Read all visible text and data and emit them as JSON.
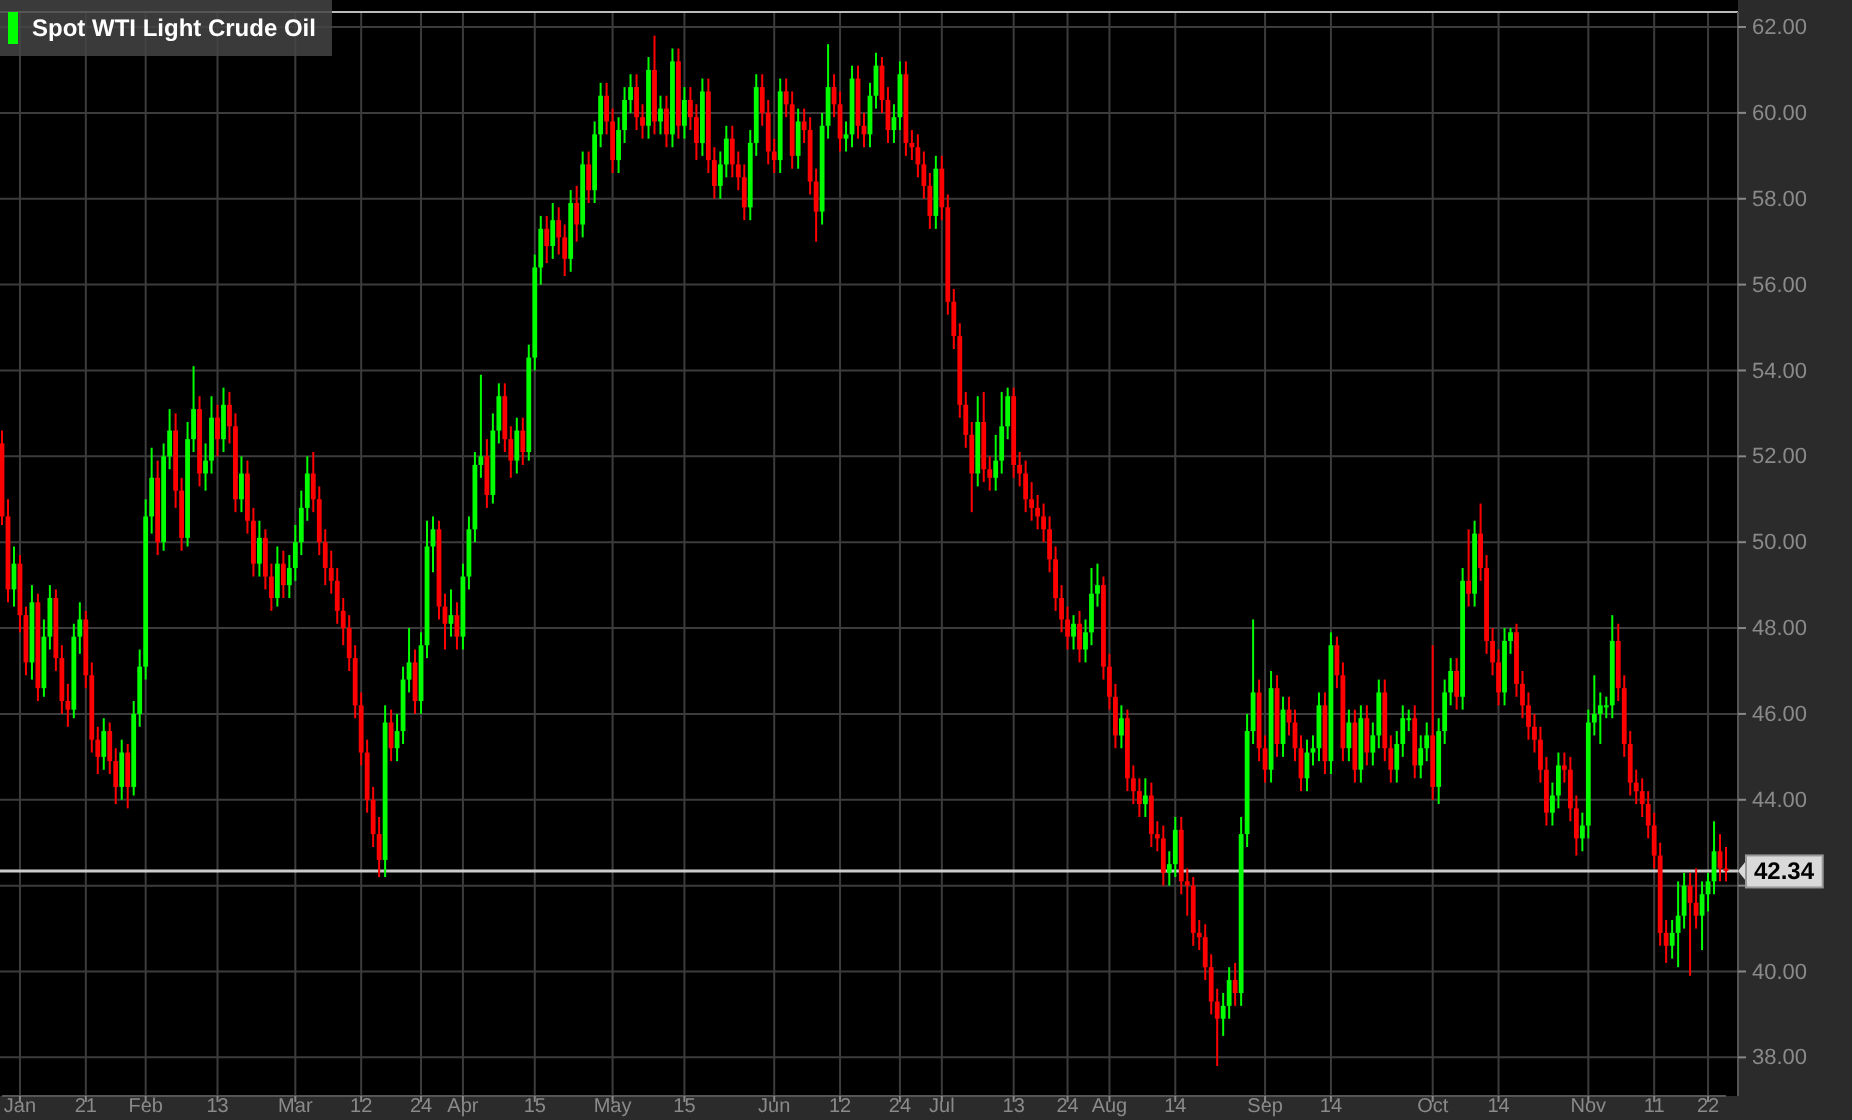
{
  "chart_data": {
    "type": "candlestick",
    "legend": "top left",
    "grid": true,
    "ylim": [
      37.1,
      62.35
    ],
    "yticks": [
      {
        "value": 38,
        "label": "38.00"
      },
      {
        "value": 40,
        "label": "40.00"
      },
      {
        "value": 42,
        "label": null
      },
      {
        "value": 44,
        "label": "44.00"
      },
      {
        "value": 46,
        "label": "46.00"
      },
      {
        "value": 48,
        "label": "48.00"
      },
      {
        "value": 50,
        "label": "50.00"
      },
      {
        "value": 52,
        "label": "52.00"
      },
      {
        "value": 54,
        "label": "54.00"
      },
      {
        "value": 56,
        "label": "56.00"
      },
      {
        "value": 58,
        "label": "58.00"
      },
      {
        "value": 60,
        "label": "60.00"
      },
      {
        "value": 62,
        "label": "62.00"
      }
    ],
    "ref_lines": [
      {
        "axis": "y",
        "value": 42.34,
        "label": "42.34",
        "color": "#cccccc"
      }
    ],
    "categories": [
      null,
      null,
      null,
      "Jan",
      null,
      null,
      null,
      null,
      null,
      null,
      null,
      null,
      null,
      null,
      "21",
      null,
      null,
      null,
      null,
      null,
      null,
      null,
      null,
      null,
      "Feb",
      null,
      null,
      null,
      null,
      null,
      null,
      null,
      null,
      null,
      null,
      null,
      "13",
      null,
      null,
      null,
      null,
      null,
      null,
      null,
      null,
      null,
      null,
      null,
      null,
      "Mar",
      null,
      null,
      null,
      null,
      null,
      null,
      null,
      null,
      null,
      null,
      "12",
      null,
      null,
      null,
      null,
      null,
      null,
      null,
      null,
      null,
      "24",
      null,
      null,
      null,
      null,
      null,
      null,
      "Apr",
      null,
      null,
      null,
      null,
      null,
      null,
      null,
      null,
      null,
      null,
      null,
      "15",
      null,
      null,
      null,
      null,
      null,
      null,
      null,
      null,
      null,
      null,
      null,
      null,
      "May",
      null,
      null,
      null,
      null,
      null,
      null,
      null,
      null,
      null,
      null,
      null,
      "15",
      null,
      null,
      null,
      null,
      null,
      null,
      null,
      null,
      null,
      null,
      null,
      null,
      null,
      null,
      "Jun",
      null,
      null,
      null,
      null,
      null,
      null,
      null,
      null,
      null,
      null,
      "12",
      null,
      null,
      null,
      null,
      null,
      null,
      null,
      null,
      null,
      "24",
      null,
      null,
      null,
      null,
      null,
      null,
      "Jul",
      null,
      null,
      null,
      null,
      null,
      null,
      null,
      null,
      null,
      null,
      null,
      "13",
      null,
      null,
      null,
      null,
      null,
      null,
      null,
      null,
      "24",
      null,
      null,
      null,
      null,
      null,
      null,
      "Aug",
      null,
      null,
      null,
      null,
      null,
      null,
      null,
      null,
      null,
      null,
      "14",
      null,
      null,
      null,
      null,
      null,
      null,
      null,
      null,
      null,
      null,
      null,
      null,
      null,
      null,
      "Sep",
      null,
      null,
      null,
      null,
      null,
      null,
      null,
      null,
      null,
      null,
      "14",
      null,
      null,
      null,
      null,
      null,
      null,
      null,
      null,
      null,
      null,
      null,
      null,
      null,
      null,
      null,
      null,
      "Oct",
      null,
      null,
      null,
      null,
      null,
      null,
      null,
      null,
      null,
      null,
      "14",
      null,
      null,
      null,
      null,
      null,
      null,
      null,
      null,
      null,
      null,
      null,
      null,
      null,
      null,
      "Nov",
      null,
      null,
      null,
      null,
      null,
      null,
      null,
      null,
      null,
      null,
      "11",
      null,
      null,
      null,
      null,
      null,
      null,
      null,
      null,
      "22",
      null,
      null,
      null
    ],
    "series": [
      {
        "name": "Spot WTI Light Crude Oil",
        "color": "#00ff00",
        "colors": [
          "#ff0000",
          "#ff0000",
          "#00ff00",
          "#ff0000",
          "#ff0000",
          "#00ff00",
          "#ff0000",
          "#00ff00",
          "#00ff00",
          "#ff0000",
          "#ff0000",
          "#ff0000",
          "#00ff00",
          "#00ff00",
          "#ff0000",
          "#ff0000",
          "#ff0000",
          "#00ff00",
          "#ff0000",
          "#ff0000",
          "#00ff00",
          "#ff0000",
          "#00ff00",
          "#00ff00",
          "#00ff00",
          "#00ff00",
          "#ff0000",
          "#00ff00",
          "#00ff00",
          "#ff0000",
          "#ff0000",
          "#00ff00",
          "#00ff00",
          "#ff0000",
          "#00ff00",
          "#00ff00",
          "#ff0000",
          "#00ff00",
          "#ff0000",
          "#ff0000",
          "#00ff00",
          "#ff0000",
          "#ff0000",
          "#00ff00",
          "#ff0000",
          "#ff0000",
          "#00ff00",
          "#ff0000",
          "#00ff00",
          "#00ff00",
          "#00ff00",
          "#00ff00",
          "#ff0000",
          "#ff0000",
          "#ff0000",
          "#ff0000",
          "#ff0000",
          "#ff0000",
          "#ff0000",
          "#ff0000",
          "#ff0000",
          "#ff0000",
          "#ff0000",
          "#ff0000",
          "#00ff00",
          "#ff0000",
          "#00ff00",
          "#00ff00",
          "#00ff00",
          "#ff0000",
          "#00ff00",
          "#00ff00",
          "#00ff00",
          "#ff0000",
          "#ff0000",
          "#00ff00",
          "#ff0000",
          "#00ff00",
          "#00ff00",
          "#00ff00",
          "#00ff00",
          "#ff0000",
          "#00ff00",
          "#00ff00",
          "#ff0000",
          "#ff0000",
          "#00ff00",
          "#ff0000",
          "#00ff00",
          "#00ff00",
          "#00ff00",
          "#ff0000",
          "#00ff00",
          "#ff0000",
          "#ff0000",
          "#00ff00",
          "#ff0000",
          "#00ff00",
          "#ff0000",
          "#00ff00",
          "#00ff00",
          "#ff0000",
          "#ff0000",
          "#00ff00",
          "#00ff00",
          "#00ff00",
          "#ff0000",
          "#ff0000",
          "#00ff00",
          "#ff0000",
          "#00ff00",
          "#ff0000",
          "#00ff00",
          "#ff0000",
          "#00ff00",
          "#ff0000",
          "#ff0000",
          "#00ff00",
          "#ff0000",
          "#ff0000",
          "#00ff00",
          "#00ff00",
          "#ff0000",
          "#ff0000",
          "#ff0000",
          "#00ff00",
          "#00ff00",
          "#ff0000",
          "#ff0000",
          "#ff0000",
          "#00ff00",
          "#ff0000",
          "#ff0000",
          "#00ff00",
          "#ff0000",
          "#ff0000",
          "#ff0000",
          "#00ff00",
          "#00ff00",
          "#ff0000",
          "#ff0000",
          "#00ff00",
          "#00ff00",
          "#ff0000",
          "#ff0000",
          "#00ff00",
          "#00ff00",
          "#ff0000",
          "#ff0000",
          "#00ff00",
          "#00ff00",
          "#ff0000",
          "#ff0000",
          "#ff0000",
          "#ff0000",
          "#ff0000",
          "#00ff00",
          "#ff0000",
          "#ff0000",
          "#ff0000",
          "#ff0000",
          "#ff0000",
          "#ff0000",
          "#00ff00",
          "#ff0000",
          "#ff0000",
          "#00ff00",
          "#00ff00",
          "#00ff00",
          "#ff0000",
          "#ff0000",
          "#ff0000",
          "#ff0000",
          "#ff0000",
          "#ff0000",
          "#ff0000",
          "#ff0000",
          "#ff0000",
          "#ff0000",
          "#00ff00",
          "#ff0000",
          "#00ff00",
          "#00ff00",
          "#00ff00",
          "#ff0000",
          "#ff0000",
          "#ff0000",
          "#00ff00",
          "#ff0000",
          "#ff0000",
          "#ff0000",
          "#00ff00",
          "#ff0000",
          "#ff0000",
          "#ff0000",
          "#00ff00",
          "#00ff00",
          "#ff0000",
          "#ff0000",
          "#ff0000",
          "#ff0000",
          "#ff0000",
          "#ff0000",
          "#ff0000",
          "#00ff00",
          "#00ff00",
          "#ff0000",
          "#00ff00",
          "#00ff00",
          "#00ff00",
          "#ff0000",
          "#ff0000",
          "#00ff00",
          "#ff0000",
          "#00ff00",
          "#ff0000",
          "#ff0000",
          "#ff0000",
          "#00ff00",
          "#00ff00",
          "#00ff00",
          "#ff0000",
          "#00ff00",
          "#ff0000",
          "#ff0000",
          "#00ff00",
          "#ff0000",
          "#00ff00",
          "#ff0000",
          "#00ff00",
          "#00ff00",
          "#ff0000",
          "#ff0000",
          "#00ff00",
          "#00ff00",
          "#00ff00",
          "#ff0000",
          "#00ff00",
          "#00ff00",
          "#ff0000",
          "#00ff00",
          "#00ff00",
          "#00ff00",
          "#ff0000",
          "#00ff00",
          "#ff0000",
          "#00ff00",
          "#ff0000",
          "#ff0000",
          "#ff0000",
          "#ff0000",
          "#00ff00",
          "#00ff00",
          "#ff0000",
          "#ff0000",
          "#ff0000",
          "#ff0000",
          "#ff0000",
          "#ff0000",
          "#00ff00",
          "#00ff00",
          "#ff0000",
          "#ff0000",
          "#ff0000",
          "#00ff00",
          "#00ff00",
          "#00ff00",
          "#00ff00",
          "#00ff00",
          "#00ff00",
          "#ff0000",
          "#ff0000",
          "#ff0000",
          "#ff0000",
          "#ff0000",
          "#ff0000",
          "#ff0000",
          "#ff0000",
          "#ff0000",
          "#00ff00",
          "#00ff00",
          "#00ff00",
          "#ff0000",
          "#ff0000",
          "#00ff00",
          "#00ff00",
          "#00ff00",
          "#ff0000",
          "#ff0000"
        ],
        "ohlc": [
          [
            52.3,
            52.6,
            50.4,
            50.6
          ],
          [
            50.6,
            51.0,
            48.6,
            48.9
          ],
          [
            48.9,
            49.9,
            48.5,
            49.5
          ],
          [
            49.5,
            49.7,
            47.9,
            48.3
          ],
          [
            48.3,
            48.5,
            46.9,
            47.2
          ],
          [
            47.2,
            49.0,
            46.8,
            48.6
          ],
          [
            48.6,
            48.8,
            46.3,
            46.6
          ],
          [
            46.6,
            48.2,
            46.4,
            47.8
          ],
          [
            47.8,
            49.0,
            47.5,
            48.7
          ],
          [
            48.7,
            48.9,
            47.0,
            47.3
          ],
          [
            47.3,
            47.6,
            46.0,
            46.3
          ],
          [
            46.3,
            46.7,
            45.7,
            46.1
          ],
          [
            46.1,
            48.1,
            45.9,
            47.8
          ],
          [
            47.8,
            48.6,
            47.4,
            48.2
          ],
          [
            48.2,
            48.4,
            46.6,
            46.9
          ],
          [
            46.9,
            47.2,
            45.1,
            45.4
          ],
          [
            45.4,
            45.7,
            44.6,
            45.0
          ],
          [
            45.0,
            45.9,
            44.7,
            45.6
          ],
          [
            45.6,
            45.8,
            44.6,
            44.9
          ],
          [
            44.9,
            45.2,
            43.9,
            44.3
          ],
          [
            44.3,
            45.4,
            44.0,
            45.1
          ],
          [
            45.1,
            45.3,
            43.8,
            44.3
          ],
          [
            44.3,
            46.3,
            44.1,
            46.0
          ],
          [
            46.0,
            47.5,
            45.7,
            47.1
          ],
          [
            47.1,
            51.0,
            46.8,
            50.6
          ],
          [
            50.6,
            52.2,
            50.2,
            51.5
          ],
          [
            51.5,
            51.9,
            49.7,
            50.0
          ],
          [
            50.0,
            52.3,
            49.8,
            52.0
          ],
          [
            52.0,
            53.1,
            51.7,
            52.6
          ],
          [
            52.6,
            53.0,
            50.8,
            51.2
          ],
          [
            51.2,
            51.5,
            49.8,
            50.1
          ],
          [
            50.1,
            52.8,
            49.9,
            52.4
          ],
          [
            52.4,
            54.1,
            52.1,
            53.1
          ],
          [
            53.1,
            53.4,
            51.3,
            51.6
          ],
          [
            51.6,
            52.3,
            51.2,
            51.9
          ],
          [
            51.9,
            53.4,
            51.6,
            52.9
          ],
          [
            52.9,
            53.2,
            52.0,
            52.4
          ],
          [
            52.4,
            53.6,
            52.1,
            53.2
          ],
          [
            53.2,
            53.5,
            52.3,
            52.7
          ],
          [
            52.7,
            53.0,
            50.7,
            51.0
          ],
          [
            51.0,
            52.0,
            50.7,
            51.6
          ],
          [
            51.6,
            51.9,
            50.2,
            50.5
          ],
          [
            50.5,
            50.8,
            49.2,
            49.5
          ],
          [
            49.5,
            50.5,
            49.2,
            50.1
          ],
          [
            50.1,
            50.3,
            48.9,
            49.2
          ],
          [
            49.2,
            49.5,
            48.4,
            48.7
          ],
          [
            48.7,
            49.9,
            48.5,
            49.5
          ],
          [
            49.5,
            49.8,
            48.7,
            49.0
          ],
          [
            49.0,
            49.7,
            48.7,
            49.4
          ],
          [
            49.4,
            50.4,
            49.1,
            50.0
          ],
          [
            50.0,
            51.2,
            49.7,
            50.8
          ],
          [
            50.8,
            52.0,
            50.5,
            51.6
          ],
          [
            51.6,
            52.1,
            50.7,
            51.0
          ],
          [
            51.0,
            51.3,
            49.7,
            50.0
          ],
          [
            50.0,
            50.3,
            49.0,
            49.4
          ],
          [
            49.4,
            49.8,
            48.8,
            49.1
          ],
          [
            49.1,
            49.4,
            48.1,
            48.4
          ],
          [
            48.4,
            48.7,
            47.6,
            48.0
          ],
          [
            48.0,
            48.3,
            47.0,
            47.3
          ],
          [
            47.3,
            47.6,
            45.9,
            46.2
          ],
          [
            46.2,
            46.5,
            44.8,
            45.1
          ],
          [
            45.1,
            45.4,
            43.7,
            44.0
          ],
          [
            44.0,
            44.3,
            42.9,
            43.2
          ],
          [
            43.2,
            43.6,
            42.2,
            42.6
          ],
          [
            42.6,
            46.2,
            42.2,
            45.8
          ],
          [
            45.8,
            46.1,
            44.9,
            45.2
          ],
          [
            45.2,
            46.0,
            44.9,
            45.6
          ],
          [
            45.6,
            47.1,
            45.3,
            46.8
          ],
          [
            46.8,
            48.0,
            46.5,
            47.2
          ],
          [
            47.2,
            47.5,
            46.0,
            46.3
          ],
          [
            46.3,
            47.9,
            46.0,
            47.6
          ],
          [
            47.6,
            50.5,
            47.3,
            49.9
          ],
          [
            49.9,
            50.6,
            49.3,
            50.3
          ],
          [
            50.3,
            50.5,
            48.2,
            48.5
          ],
          [
            48.5,
            48.8,
            47.5,
            48.1
          ],
          [
            48.1,
            48.9,
            47.8,
            48.3
          ],
          [
            48.3,
            48.6,
            47.5,
            47.8
          ],
          [
            47.8,
            49.5,
            47.5,
            49.2
          ],
          [
            49.2,
            50.6,
            48.9,
            50.3
          ],
          [
            50.3,
            52.1,
            50.0,
            51.8
          ],
          [
            51.8,
            53.9,
            51.5,
            52.0
          ],
          [
            52.0,
            52.4,
            50.8,
            51.1
          ],
          [
            51.1,
            53.0,
            50.9,
            52.6
          ],
          [
            52.6,
            53.7,
            52.3,
            53.4
          ],
          [
            53.4,
            53.7,
            52.1,
            52.4
          ],
          [
            52.4,
            52.7,
            51.5,
            51.9
          ],
          [
            51.9,
            52.9,
            51.6,
            52.6
          ],
          [
            52.6,
            52.9,
            51.8,
            52.1
          ],
          [
            52.1,
            54.6,
            51.9,
            54.3
          ],
          [
            54.3,
            56.7,
            54.0,
            56.4
          ],
          [
            56.4,
            57.6,
            56.0,
            57.3
          ],
          [
            57.3,
            57.6,
            56.5,
            56.9
          ],
          [
            56.9,
            57.9,
            56.6,
            57.5
          ],
          [
            57.5,
            57.8,
            56.7,
            57.1
          ],
          [
            57.1,
            57.4,
            56.2,
            56.6
          ],
          [
            56.6,
            58.2,
            56.3,
            57.9
          ],
          [
            57.9,
            58.3,
            57.0,
            57.4
          ],
          [
            57.4,
            59.1,
            57.1,
            58.8
          ],
          [
            58.8,
            59.1,
            57.9,
            58.2
          ],
          [
            58.2,
            59.8,
            57.9,
            59.5
          ],
          [
            59.5,
            60.7,
            59.2,
            60.4
          ],
          [
            60.4,
            60.7,
            59.5,
            59.8
          ],
          [
            59.8,
            60.1,
            58.6,
            58.9
          ],
          [
            58.9,
            59.9,
            58.6,
            59.6
          ],
          [
            59.6,
            60.6,
            59.3,
            60.3
          ],
          [
            60.3,
            60.9,
            60.0,
            60.6
          ],
          [
            60.6,
            60.9,
            59.6,
            59.9
          ],
          [
            59.9,
            60.2,
            59.4,
            59.7
          ],
          [
            59.7,
            61.3,
            59.4,
            61.0
          ],
          [
            61.0,
            61.8,
            59.5,
            59.8
          ],
          [
            59.8,
            60.4,
            59.5,
            60.1
          ],
          [
            60.1,
            60.4,
            59.2,
            59.5
          ],
          [
            59.5,
            61.5,
            59.2,
            61.2
          ],
          [
            61.2,
            61.5,
            59.4,
            59.7
          ],
          [
            59.7,
            60.6,
            59.4,
            60.3
          ],
          [
            60.3,
            60.6,
            59.6,
            59.9
          ],
          [
            59.9,
            60.2,
            58.9,
            59.3
          ],
          [
            59.3,
            60.8,
            59.0,
            60.5
          ],
          [
            60.5,
            60.8,
            58.6,
            58.9
          ],
          [
            58.9,
            59.2,
            58.0,
            58.3
          ],
          [
            58.3,
            59.1,
            58.0,
            58.8
          ],
          [
            58.8,
            59.7,
            58.5,
            59.4
          ],
          [
            59.4,
            59.7,
            58.5,
            58.8
          ],
          [
            58.8,
            59.1,
            58.2,
            58.5
          ],
          [
            58.5,
            58.8,
            57.5,
            57.8
          ],
          [
            57.8,
            59.6,
            57.5,
            59.3
          ],
          [
            59.3,
            60.9,
            59.0,
            60.6
          ],
          [
            60.6,
            60.9,
            59.7,
            60.0
          ],
          [
            60.0,
            60.3,
            58.8,
            59.1
          ],
          [
            59.1,
            59.4,
            58.6,
            58.9
          ],
          [
            58.9,
            60.8,
            58.6,
            60.5
          ],
          [
            60.5,
            60.8,
            59.9,
            60.2
          ],
          [
            60.2,
            60.5,
            58.7,
            59.0
          ],
          [
            59.0,
            60.1,
            58.7,
            59.8
          ],
          [
            59.8,
            60.1,
            59.3,
            59.6
          ],
          [
            59.6,
            59.9,
            58.1,
            58.4
          ],
          [
            58.4,
            58.7,
            57.0,
            57.7
          ],
          [
            57.7,
            60.0,
            57.4,
            59.7
          ],
          [
            59.7,
            61.6,
            59.4,
            60.6
          ],
          [
            60.6,
            60.9,
            59.9,
            60.2
          ],
          [
            60.2,
            60.5,
            59.1,
            59.4
          ],
          [
            59.4,
            59.8,
            59.1,
            59.5
          ],
          [
            59.5,
            61.1,
            59.2,
            60.8
          ],
          [
            60.8,
            61.1,
            59.4,
            59.7
          ],
          [
            59.7,
            60.0,
            59.2,
            59.5
          ],
          [
            59.5,
            60.7,
            59.2,
            60.4
          ],
          [
            60.4,
            61.4,
            60.1,
            61.1
          ],
          [
            61.1,
            61.3,
            60.0,
            60.3
          ],
          [
            60.3,
            60.6,
            59.3,
            59.6
          ],
          [
            59.6,
            60.2,
            59.3,
            59.9
          ],
          [
            59.9,
            61.2,
            59.6,
            60.9
          ],
          [
            60.9,
            61.2,
            59.0,
            59.3
          ],
          [
            59.3,
            59.6,
            58.9,
            59.2
          ],
          [
            59.2,
            59.5,
            58.5,
            58.8
          ],
          [
            58.8,
            59.1,
            58.0,
            58.3
          ],
          [
            58.3,
            58.6,
            57.3,
            57.6
          ],
          [
            57.6,
            59.0,
            57.3,
            58.7
          ],
          [
            58.7,
            59.0,
            57.5,
            57.8
          ],
          [
            57.8,
            58.1,
            55.3,
            55.6
          ],
          [
            55.6,
            55.9,
            54.5,
            54.8
          ],
          [
            54.8,
            55.1,
            52.9,
            53.2
          ],
          [
            53.2,
            53.5,
            52.2,
            52.5
          ],
          [
            52.5,
            52.8,
            50.7,
            51.6
          ],
          [
            51.6,
            53.4,
            51.3,
            52.8
          ],
          [
            52.8,
            53.5,
            51.4,
            51.7
          ],
          [
            51.7,
            52.0,
            51.2,
            51.5
          ],
          [
            51.5,
            52.5,
            51.2,
            51.9
          ],
          [
            51.9,
            53.5,
            51.6,
            52.7
          ],
          [
            52.7,
            53.6,
            52.4,
            53.4
          ],
          [
            53.4,
            53.6,
            51.5,
            51.8
          ],
          [
            51.8,
            52.1,
            51.3,
            51.6
          ],
          [
            51.6,
            51.9,
            50.7,
            51.0
          ],
          [
            51.0,
            51.4,
            50.5,
            50.8
          ],
          [
            50.8,
            51.1,
            50.3,
            50.6
          ],
          [
            50.6,
            50.9,
            50.0,
            50.3
          ],
          [
            50.3,
            50.6,
            49.3,
            49.6
          ],
          [
            49.6,
            49.9,
            48.4,
            48.7
          ],
          [
            48.7,
            49.0,
            47.9,
            48.2
          ],
          [
            48.2,
            48.5,
            47.5,
            47.8
          ],
          [
            47.8,
            48.3,
            47.5,
            48.1
          ],
          [
            48.1,
            48.4,
            47.2,
            47.5
          ],
          [
            47.5,
            48.2,
            47.2,
            47.9
          ],
          [
            47.9,
            49.4,
            47.6,
            48.8
          ],
          [
            48.8,
            49.5,
            48.5,
            49.0
          ],
          [
            49.0,
            49.2,
            46.8,
            47.1
          ],
          [
            47.1,
            47.4,
            46.1,
            46.4
          ],
          [
            46.4,
            46.7,
            45.2,
            45.5
          ],
          [
            45.5,
            46.2,
            45.2,
            45.9
          ],
          [
            45.9,
            46.1,
            44.2,
            44.5
          ],
          [
            44.5,
            44.8,
            43.9,
            44.2
          ],
          [
            44.2,
            44.5,
            43.6,
            43.9
          ],
          [
            43.9,
            44.5,
            43.6,
            44.1
          ],
          [
            44.1,
            44.4,
            42.9,
            43.2
          ],
          [
            43.2,
            43.5,
            42.8,
            43.1
          ],
          [
            43.1,
            43.4,
            42.0,
            42.3
          ],
          [
            42.3,
            42.8,
            42.0,
            42.5
          ],
          [
            42.5,
            43.6,
            42.2,
            43.3
          ],
          [
            43.3,
            43.6,
            41.8,
            42.1
          ],
          [
            42.1,
            42.4,
            41.3,
            42.0
          ],
          [
            42.0,
            42.2,
            40.6,
            40.9
          ],
          [
            40.9,
            41.2,
            40.5,
            40.8
          ],
          [
            40.8,
            41.1,
            39.8,
            40.1
          ],
          [
            40.1,
            40.4,
            39.0,
            39.3
          ],
          [
            39.3,
            39.6,
            37.8,
            38.9
          ],
          [
            38.9,
            39.5,
            38.5,
            39.2
          ],
          [
            39.2,
            40.1,
            38.9,
            39.8
          ],
          [
            39.8,
            40.2,
            39.2,
            39.5
          ],
          [
            39.5,
            43.6,
            39.2,
            43.2
          ],
          [
            43.2,
            46.0,
            42.9,
            45.6
          ],
          [
            45.6,
            48.2,
            45.3,
            46.5
          ],
          [
            46.5,
            46.8,
            44.9,
            45.2
          ],
          [
            45.2,
            45.5,
            44.4,
            44.7
          ],
          [
            44.7,
            47.0,
            44.4,
            46.6
          ],
          [
            46.6,
            46.9,
            45.0,
            45.3
          ],
          [
            45.3,
            46.4,
            45.0,
            46.1
          ],
          [
            46.1,
            46.4,
            45.5,
            45.8
          ],
          [
            45.8,
            46.1,
            44.9,
            45.2
          ],
          [
            45.2,
            45.5,
            44.2,
            44.5
          ],
          [
            44.5,
            45.4,
            44.2,
            45.1
          ],
          [
            45.1,
            45.5,
            44.8,
            45.2
          ],
          [
            45.2,
            46.5,
            44.9,
            46.2
          ],
          [
            46.2,
            46.5,
            44.6,
            44.9
          ],
          [
            44.9,
            47.9,
            44.6,
            47.6
          ],
          [
            47.6,
            47.8,
            46.6,
            46.9
          ],
          [
            46.9,
            47.2,
            44.9,
            45.2
          ],
          [
            45.2,
            46.1,
            44.9,
            45.8
          ],
          [
            45.8,
            46.1,
            44.4,
            44.7
          ],
          [
            44.7,
            46.2,
            44.4,
            45.9
          ],
          [
            45.9,
            46.2,
            44.8,
            45.1
          ],
          [
            45.1,
            45.8,
            44.8,
            45.5
          ],
          [
            45.5,
            46.8,
            45.2,
            46.5
          ],
          [
            46.5,
            46.8,
            44.9,
            45.2
          ],
          [
            45.2,
            45.5,
            44.4,
            44.7
          ],
          [
            44.7,
            45.6,
            44.4,
            45.3
          ],
          [
            45.3,
            46.2,
            45.0,
            45.9
          ],
          [
            45.9,
            46.1,
            45.6,
            45.9
          ],
          [
            45.9,
            46.2,
            44.5,
            44.8
          ],
          [
            44.8,
            45.5,
            44.5,
            45.2
          ],
          [
            45.2,
            45.8,
            44.9,
            45.5
          ],
          [
            45.5,
            47.6,
            44.0,
            44.3
          ],
          [
            44.3,
            45.9,
            43.9,
            45.6
          ],
          [
            45.6,
            46.8,
            45.3,
            46.5
          ],
          [
            46.5,
            47.3,
            46.2,
            47.0
          ],
          [
            47.0,
            47.3,
            46.1,
            46.4
          ],
          [
            46.4,
            49.4,
            46.1,
            49.1
          ],
          [
            49.1,
            50.3,
            48.5,
            48.8
          ],
          [
            48.8,
            50.5,
            48.5,
            50.2
          ],
          [
            50.2,
            50.9,
            49.1,
            49.4
          ],
          [
            49.4,
            49.7,
            47.4,
            47.7
          ],
          [
            47.7,
            48.0,
            46.9,
            47.2
          ],
          [
            47.2,
            47.5,
            46.2,
            46.5
          ],
          [
            46.5,
            48.0,
            46.2,
            47.7
          ],
          [
            47.7,
            48.0,
            47.4,
            47.9
          ],
          [
            47.9,
            48.1,
            46.4,
            46.7
          ],
          [
            46.7,
            47.0,
            45.9,
            46.2
          ],
          [
            46.2,
            46.5,
            45.4,
            45.7
          ],
          [
            45.7,
            46.0,
            45.1,
            45.4
          ],
          [
            45.4,
            45.7,
            44.4,
            44.7
          ],
          [
            44.7,
            45.0,
            43.4,
            43.7
          ],
          [
            43.7,
            44.4,
            43.4,
            44.1
          ],
          [
            44.1,
            45.1,
            43.8,
            44.8
          ],
          [
            44.8,
            45.1,
            44.4,
            44.7
          ],
          [
            44.7,
            45.0,
            43.5,
            43.8
          ],
          [
            43.8,
            44.1,
            42.7,
            43.1
          ],
          [
            43.1,
            43.7,
            42.8,
            43.4
          ],
          [
            43.4,
            46.1,
            43.1,
            45.8
          ],
          [
            45.8,
            46.9,
            45.5,
            46.0
          ],
          [
            46.0,
            46.5,
            45.3,
            46.2
          ],
          [
            46.2,
            46.4,
            45.9,
            46.2
          ],
          [
            46.2,
            48.3,
            45.9,
            47.7
          ],
          [
            47.7,
            48.1,
            46.3,
            46.6
          ],
          [
            46.6,
            46.9,
            45.0,
            45.3
          ],
          [
            45.3,
            45.6,
            44.1,
            44.4
          ],
          [
            44.4,
            44.7,
            43.9,
            44.2
          ],
          [
            44.2,
            44.5,
            43.6,
            43.9
          ],
          [
            43.9,
            44.2,
            43.1,
            43.4
          ],
          [
            43.4,
            43.7,
            42.4,
            42.7
          ],
          [
            42.7,
            43.0,
            40.6,
            40.9
          ],
          [
            40.9,
            41.2,
            40.2,
            40.6
          ],
          [
            40.6,
            41.2,
            40.3,
            40.9
          ],
          [
            40.9,
            42.1,
            40.1,
            41.3
          ],
          [
            41.3,
            42.3,
            41.0,
            42.0
          ],
          [
            42.0,
            42.3,
            39.9,
            41.6
          ],
          [
            41.6,
            42.4,
            41.0,
            41.3
          ],
          [
            41.3,
            42.1,
            40.5,
            41.8
          ],
          [
            41.8,
            42.3,
            41.4,
            42.1
          ],
          [
            42.1,
            43.5,
            41.8,
            42.8
          ],
          [
            42.8,
            43.2,
            42.1,
            42.4
          ],
          [
            42.4,
            42.9,
            42.1,
            42.34
          ]
        ]
      }
    ]
  }
}
